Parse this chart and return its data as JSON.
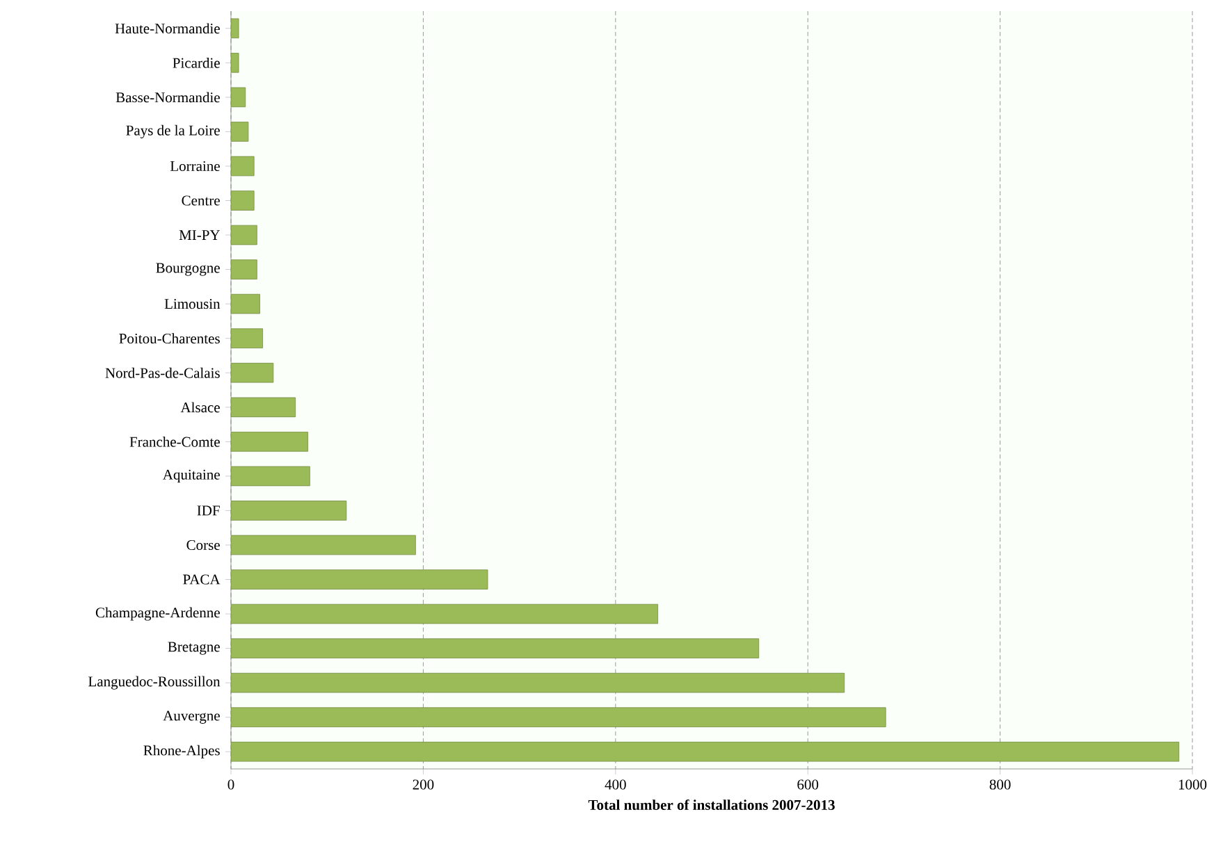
{
  "chart_data": {
    "type": "bar",
    "orientation": "horizontal",
    "xlabel": "Total number of installations 2007-2013",
    "categories": [
      "Haute-Normandie",
      "Picardie",
      "Basse-Normandie",
      "Pays de la Loire",
      "Lorraine",
      "Centre",
      "MI-PY",
      "Bourgogne",
      "Limousin",
      "Poitou-Charentes",
      "Nord-Pas-de-Calais",
      "Alsace",
      "Franche-Comte",
      "Aquitaine",
      "IDF",
      "Corse",
      "PACA",
      "Champagne-Ardenne",
      "Bretagne",
      "Languedoc-Roussillon",
      "Auvergne",
      "Rhone-Alpes"
    ],
    "values": [
      8,
      8,
      15,
      18,
      24,
      24,
      27,
      27,
      30,
      33,
      44,
      67,
      80,
      82,
      120,
      192,
      267,
      444,
      549,
      638,
      681,
      986
    ],
    "color": "#9bbb59",
    "xlim": [
      0,
      1000
    ],
    "xticks": [
      0,
      200,
      400,
      600,
      800,
      1000
    ],
    "grid": "x"
  }
}
